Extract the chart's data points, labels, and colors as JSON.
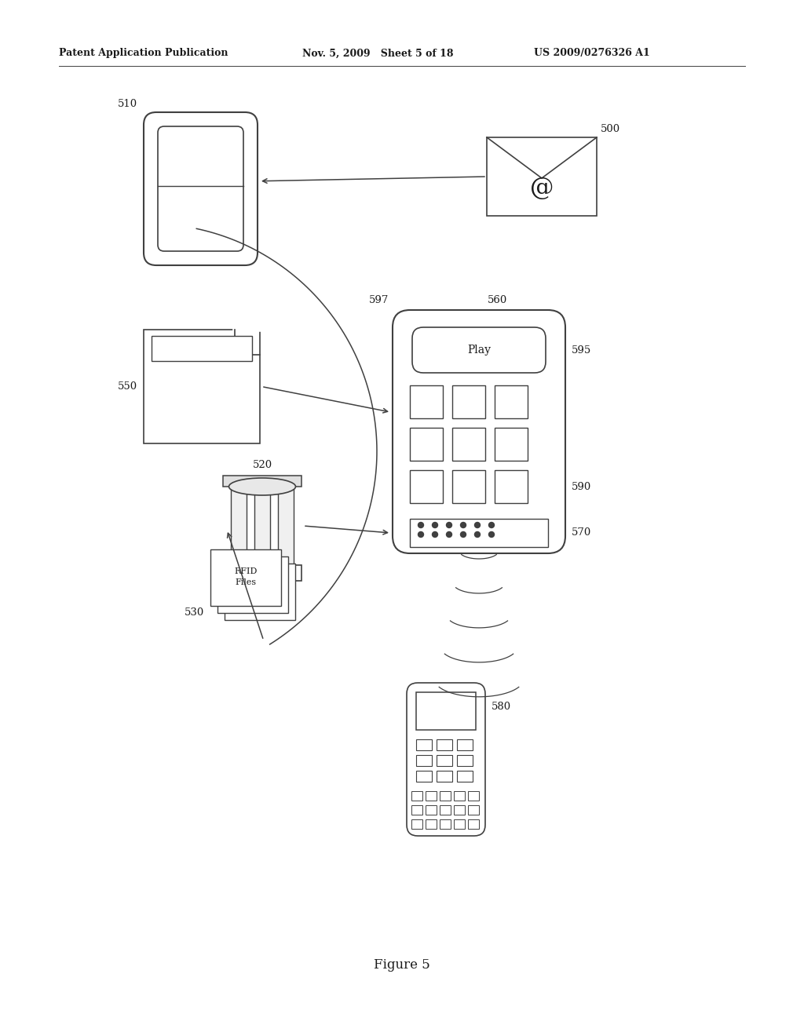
{
  "bg_color": "#ffffff",
  "header_left": "Patent Application Publication",
  "header_mid": "Nov. 5, 2009   Sheet 5 of 18",
  "header_right": "US 2009/0276326 A1",
  "figure_caption": "Figure 5",
  "lc": "#404040",
  "lw": 1.1
}
